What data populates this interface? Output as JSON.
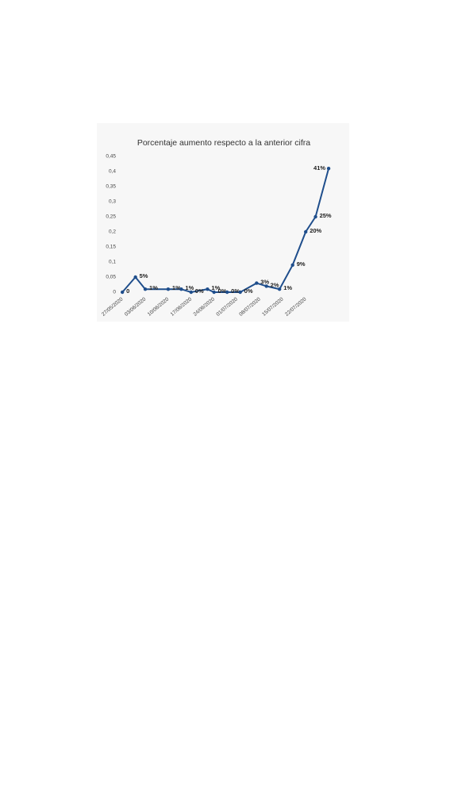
{
  "chart_data": {
    "type": "line",
    "title": "Porcentaje aumento respecto a la anterior cifra",
    "x": [
      "2020-05-28",
      "2020-06-01",
      "2020-06-04",
      "2020-06-11",
      "2020-06-15",
      "2020-06-18",
      "2020-06-23",
      "2020-06-25",
      "2020-06-29",
      "2020-07-03",
      "2020-07-08",
      "2020-07-11",
      "2020-07-15",
      "2020-07-19",
      "2020-07-23",
      "2020-07-26",
      "2020-07-30"
    ],
    "series": [
      {
        "color": "#1f4e8c",
        "values": [
          0,
          0.05,
          0.01,
          0.01,
          0.01,
          0,
          0.01,
          0,
          0,
          0,
          0.03,
          0.02,
          0.01,
          0.09,
          0.2,
          0.25,
          0.41
        ],
        "value_labels": [
          "0",
          "5%",
          "1%",
          "1%",
          "1%",
          "0%",
          "1%",
          "0%",
          "0%",
          "0%",
          "3%",
          "2%",
          "1%",
          "9%",
          "20%",
          "25%",
          "41%"
        ]
      }
    ],
    "xlim": [
      "2020-05-26",
      "2020-07-31"
    ],
    "xticks": [
      {
        "value": "2020-05-27",
        "label": "27/05/2020"
      },
      {
        "value": "2020-06-03",
        "label": "03/06/2020"
      },
      {
        "value": "2020-06-10",
        "label": "10/06/2020"
      },
      {
        "value": "2020-06-17",
        "label": "17/06/2020"
      },
      {
        "value": "2020-06-24",
        "label": "24/06/2020"
      },
      {
        "value": "2020-07-01",
        "label": "01/07/2020"
      },
      {
        "value": "2020-07-08",
        "label": "08/07/2020"
      },
      {
        "value": "2020-07-15",
        "label": "15/07/2020"
      },
      {
        "value": "2020-07-22",
        "label": "22/07/2020"
      }
    ],
    "ylim": [
      0,
      0.45
    ],
    "yticks": [
      0,
      {
        "value": 0.05,
        "label": "0,05"
      },
      {
        "value": 0.1,
        "label": "0,1"
      },
      {
        "value": 0.15,
        "label": "0,15"
      },
      {
        "value": 0.2,
        "label": "0,2"
      },
      {
        "value": 0.25,
        "label": "0,25"
      },
      {
        "value": 0.3,
        "label": "0,3"
      },
      {
        "value": 0.35,
        "label": "0,35"
      },
      {
        "value": 0.4,
        "label": "0,4"
      },
      {
        "value": 0.45,
        "label": "0,45"
      }
    ],
    "grid": false
  }
}
